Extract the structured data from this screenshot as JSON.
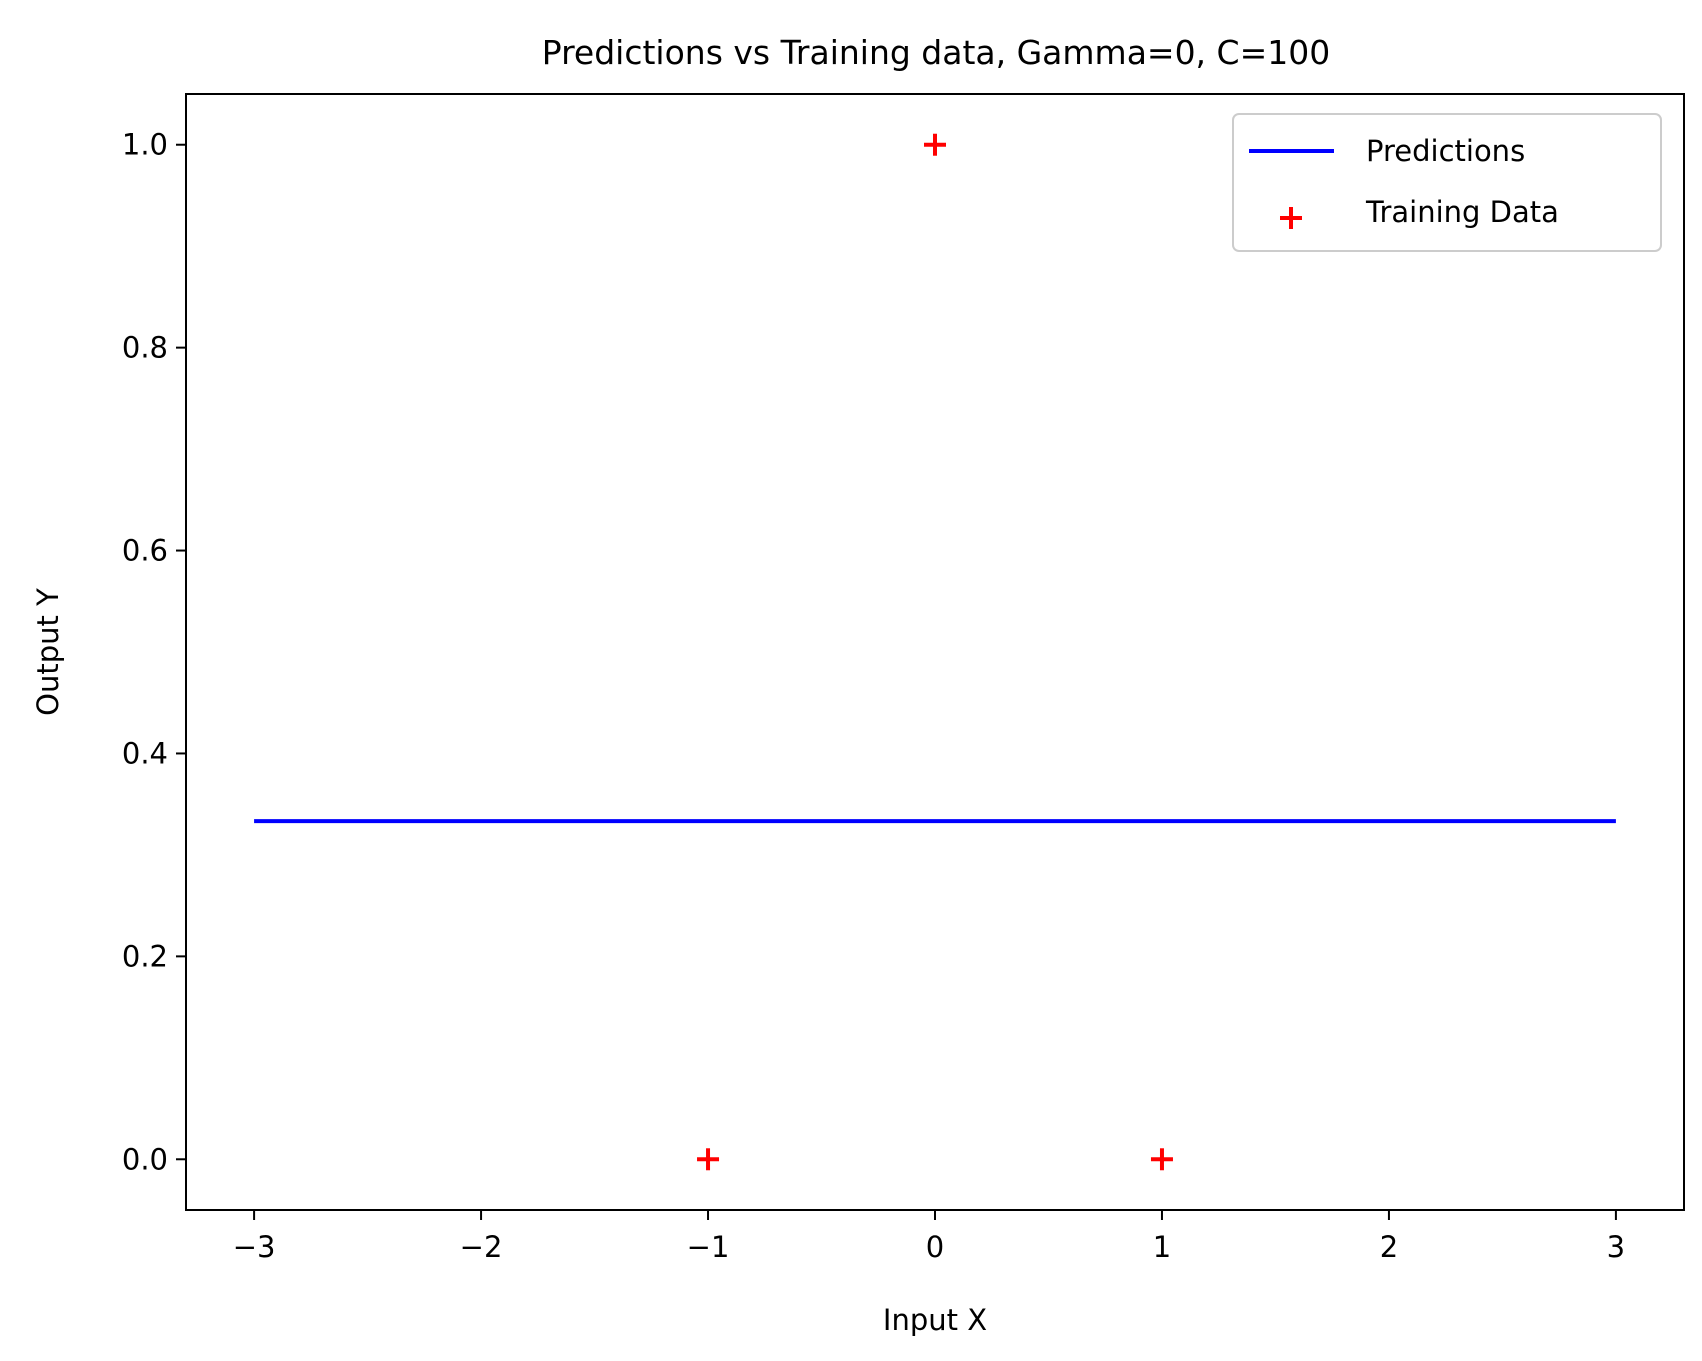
{
  "chart_data": {
    "type": "line",
    "title": "Predictions vs Training data, Gamma=0, C=100",
    "xlabel": "Input X",
    "ylabel": "Output Y",
    "xlim": [
      -3.3,
      3.3
    ],
    "ylim": [
      -0.05,
      1.05
    ],
    "xticks": [
      -3,
      -2,
      -1,
      0,
      1,
      2,
      3
    ],
    "xtick_labels": [
      "−3",
      "−2",
      "−1",
      "0",
      "1",
      "2",
      "3"
    ],
    "yticks": [
      0.0,
      0.2,
      0.4,
      0.6,
      0.8,
      1.0
    ],
    "ytick_labels": [
      "0.0",
      "0.2",
      "0.4",
      "0.6",
      "0.8",
      "1.0"
    ],
    "grid": false,
    "legend_position": "top-right",
    "series": [
      {
        "name": "Predictions",
        "kind": "line",
        "color": "#0000ff",
        "x": [
          -3,
          3
        ],
        "y": [
          0.3333,
          0.3333
        ]
      },
      {
        "name": "Training Data",
        "kind": "scatter",
        "marker": "+",
        "color": "#ff0000",
        "x": [
          -1,
          0,
          1
        ],
        "y": [
          0,
          1,
          0
        ]
      }
    ]
  }
}
